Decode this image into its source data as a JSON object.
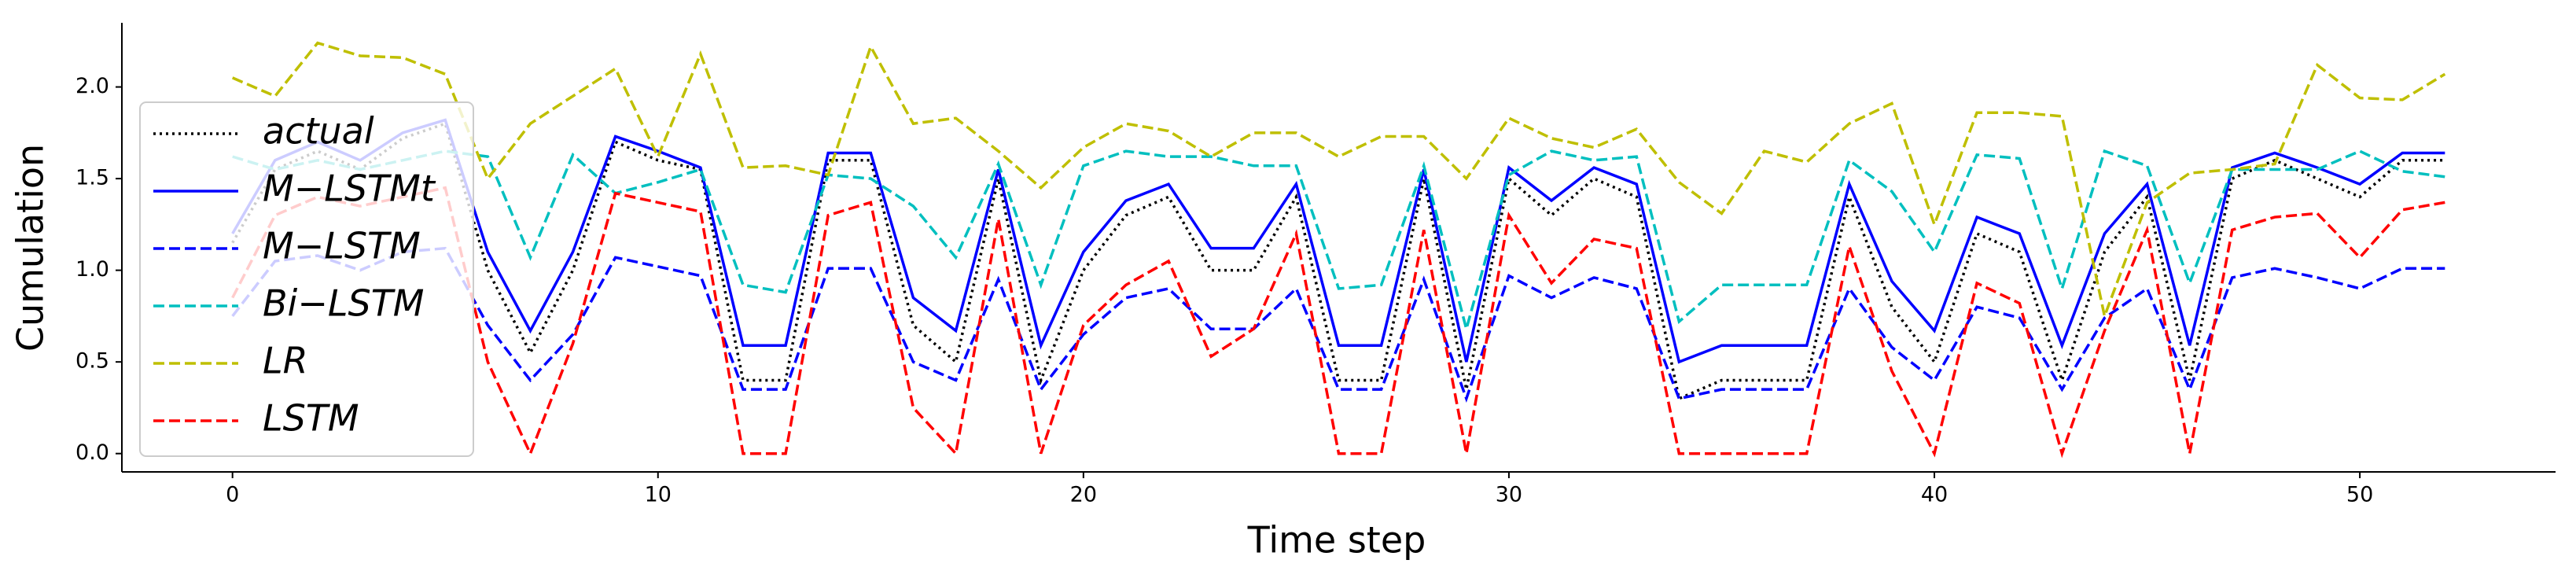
{
  "chart_data": {
    "type": "line",
    "x_label": "Time step",
    "y_label": "Cumulation",
    "x": [
      0,
      1,
      2,
      3,
      4,
      5,
      6,
      7,
      8,
      9,
      10,
      11,
      12,
      13,
      14,
      15,
      16,
      17,
      18,
      19,
      20,
      21,
      22,
      23,
      24,
      25,
      26,
      27,
      28,
      29,
      30,
      31,
      32,
      33,
      34,
      35,
      36,
      37,
      38,
      39,
      40,
      41,
      42,
      43,
      44,
      45,
      46,
      47,
      48,
      49,
      50,
      51,
      52
    ],
    "xlim": [
      -2.6,
      54.6
    ],
    "xticks": [
      0,
      10,
      20,
      30,
      40,
      50
    ],
    "ylim": [
      -0.1,
      2.35
    ],
    "yticks": [
      {
        "value": 0,
        "label": "0.0"
      },
      {
        "value": 0.5,
        "label": "0.5"
      },
      {
        "value": 1,
        "label": "1.0"
      },
      {
        "value": 1.5,
        "label": "1.5"
      },
      {
        "value": 2,
        "label": "2.0"
      }
    ],
    "legend": "upper left",
    "series": [
      {
        "name": "actual",
        "color": "#000000",
        "style": "dotted",
        "values": [
          1.15,
          1.55,
          1.65,
          1.55,
          1.72,
          1.8,
          1.0,
          0.55,
          1.0,
          1.7,
          1.6,
          1.55,
          0.4,
          0.4,
          1.6,
          1.6,
          0.7,
          0.5,
          1.5,
          0.4,
          1.0,
          1.3,
          1.4,
          1.0,
          1.0,
          1.4,
          0.4,
          0.4,
          1.5,
          0.35,
          1.5,
          1.3,
          1.5,
          1.4,
          0.3,
          0.4,
          0.4,
          0.4,
          1.4,
          0.8,
          0.5,
          1.2,
          1.1,
          0.4,
          1.1,
          1.4,
          0.4,
          1.5,
          1.6,
          1.5,
          1.4,
          1.6,
          1.6
        ]
      },
      {
        "name": "M−LSTMt",
        "color": "#0000ff",
        "style": "solid",
        "values": [
          1.2,
          1.6,
          1.7,
          1.6,
          1.75,
          1.82,
          1.1,
          0.67,
          1.1,
          1.73,
          1.65,
          1.56,
          0.59,
          0.59,
          1.64,
          1.64,
          0.85,
          0.67,
          1.55,
          0.59,
          1.1,
          1.38,
          1.47,
          1.12,
          1.12,
          1.47,
          0.59,
          0.59,
          1.55,
          0.5,
          1.56,
          1.38,
          1.56,
          1.47,
          0.5,
          0.59,
          0.59,
          0.59,
          1.47,
          0.94,
          0.67,
          1.29,
          1.2,
          0.59,
          1.2,
          1.47,
          0.59,
          1.56,
          1.64,
          1.56,
          1.47,
          1.64,
          1.64
        ]
      },
      {
        "name": "M−LSTM",
        "color": "#0000ff",
        "style": "dashed",
        "values": [
          0.75,
          1.05,
          1.08,
          1.0,
          1.1,
          1.12,
          0.7,
          0.4,
          0.65,
          1.07,
          1.02,
          0.97,
          0.35,
          0.35,
          1.01,
          1.01,
          0.5,
          0.4,
          0.95,
          0.35,
          0.65,
          0.85,
          0.9,
          0.68,
          0.68,
          0.9,
          0.35,
          0.35,
          0.95,
          0.3,
          0.97,
          0.85,
          0.96,
          0.9,
          0.3,
          0.35,
          0.35,
          0.35,
          0.9,
          0.58,
          0.4,
          0.8,
          0.74,
          0.35,
          0.74,
          0.9,
          0.35,
          0.96,
          1.01,
          0.96,
          0.9,
          1.01,
          1.01
        ]
      },
      {
        "name": "Bi−LSTM",
        "color": "#00bfbf",
        "style": "dashed",
        "values": [
          1.62,
          1.55,
          1.6,
          1.55,
          1.6,
          1.65,
          1.62,
          1.07,
          1.63,
          1.42,
          1.48,
          1.55,
          0.92,
          0.88,
          1.52,
          1.5,
          1.35,
          1.07,
          1.58,
          0.92,
          1.57,
          1.65,
          1.62,
          1.62,
          1.57,
          1.57,
          0.9,
          0.92,
          1.57,
          0.68,
          1.52,
          1.65,
          1.6,
          1.62,
          0.72,
          0.92,
          0.92,
          0.92,
          1.6,
          1.43,
          1.1,
          1.63,
          1.61,
          0.9,
          1.65,
          1.57,
          0.93,
          1.55,
          1.55,
          1.55,
          1.65,
          1.54,
          1.51
        ]
      },
      {
        "name": "LR",
        "color": "#bfbf00",
        "style": "dashed",
        "values": [
          2.05,
          1.95,
          2.24,
          2.17,
          2.16,
          2.07,
          1.5,
          1.8,
          1.95,
          2.1,
          1.62,
          2.18,
          1.56,
          1.57,
          1.52,
          2.22,
          1.8,
          1.83,
          1.65,
          1.45,
          1.67,
          1.8,
          1.76,
          1.62,
          1.75,
          1.75,
          1.62,
          1.73,
          1.73,
          1.5,
          1.83,
          1.72,
          1.67,
          1.77,
          1.48,
          1.31,
          1.65,
          1.59,
          1.8,
          1.91,
          1.25,
          1.86,
          1.86,
          1.84,
          0.75,
          1.37,
          1.53,
          1.55,
          1.58,
          2.12,
          1.94,
          1.93,
          2.07
        ]
      },
      {
        "name": "LSTM",
        "color": "#ff0000",
        "style": "dashed",
        "values": [
          0.85,
          1.3,
          1.4,
          1.35,
          1.4,
          1.45,
          0.5,
          0.0,
          0.6,
          1.42,
          1.37,
          1.32,
          0.0,
          0.0,
          1.3,
          1.37,
          0.25,
          0.0,
          1.28,
          0.0,
          0.7,
          0.92,
          1.05,
          0.53,
          0.68,
          1.2,
          0.0,
          0.0,
          1.22,
          0.0,
          1.3,
          0.93,
          1.17,
          1.12,
          0.0,
          0.0,
          0.0,
          0.0,
          1.13,
          0.45,
          0.0,
          0.93,
          0.82,
          0.0,
          0.67,
          1.22,
          0.0,
          1.22,
          1.29,
          1.31,
          1.07,
          1.33,
          1.37
        ]
      }
    ]
  }
}
